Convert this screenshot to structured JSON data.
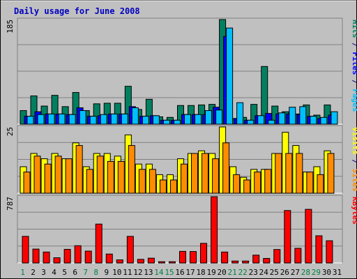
{
  "chart_data": [
    {
      "type": "bar",
      "title": "Daily usage for June 2008",
      "ymax_label": "185",
      "ylim": [
        0,
        185
      ],
      "categories": [
        "1",
        "2",
        "3",
        "4",
        "5",
        "6",
        "7",
        "8",
        "9",
        "10",
        "11",
        "12",
        "13",
        "14",
        "15",
        "16",
        "17",
        "18",
        "19",
        "20",
        "21",
        "22",
        "23",
        "24",
        "25",
        "26",
        "27",
        "28",
        "29",
        "30",
        "31"
      ],
      "weekend_days": [
        "1",
        "7",
        "8",
        "14",
        "15",
        "21",
        "22",
        "28",
        "29"
      ],
      "series": [
        {
          "name": "Hits",
          "color": "#008060",
          "values": [
            24,
            50,
            32,
            51,
            31,
            56,
            24,
            36,
            37,
            37,
            67,
            26,
            44,
            13,
            12,
            33,
            33,
            34,
            35,
            185,
            10,
            12,
            35,
            102,
            32,
            22,
            18,
            34,
            16,
            34,
            0
          ]
        },
        {
          "name": "Files",
          "color": "#0000ff",
          "values": [
            14,
            22,
            18,
            18,
            17,
            29,
            14,
            15,
            18,
            18,
            31,
            14,
            15,
            7,
            7,
            17,
            17,
            17,
            30,
            155,
            10,
            7,
            15,
            19,
            18,
            18,
            17,
            14,
            10,
            16,
            0
          ]
        },
        {
          "name": "Pages",
          "color": "#00bfff",
          "values": [
            14,
            17,
            18,
            18,
            17,
            24,
            14,
            17,
            18,
            18,
            29,
            14,
            15,
            7,
            7,
            17,
            17,
            24,
            25,
            170,
            38,
            7,
            15,
            7,
            20,
            30,
            31,
            14,
            12,
            22,
            0
          ]
        }
      ],
      "label_parts": [
        {
          "text": "Pages",
          "color": "#00bfff"
        },
        {
          "text": " / ",
          "color": "#000080"
        },
        {
          "text": "Files",
          "color": "#0000ff"
        },
        {
          "text": " / ",
          "color": "#000080"
        },
        {
          "text": "Hits",
          "color": "#008060"
        }
      ]
    },
    {
      "type": "bar",
      "ymax_label": "25",
      "ylim": [
        0,
        25
      ],
      "series": [
        {
          "name": "Visits",
          "color": "#ffff00",
          "values": [
            10,
            15,
            13,
            15,
            13,
            19,
            10,
            15,
            15,
            14,
            22,
            11,
            11,
            7,
            7,
            13,
            15,
            16,
            15,
            25,
            10,
            6,
            9,
            9,
            15,
            23,
            18,
            8,
            10,
            16,
            0
          ]
        },
        {
          "name": "Sites",
          "color": "#ff8c00",
          "values": [
            8,
            14,
            11,
            14,
            13,
            18,
            9,
            14,
            12,
            12,
            18,
            9,
            9,
            5,
            5,
            11,
            15,
            15,
            13,
            19,
            7,
            5,
            8,
            9,
            15,
            15,
            15,
            8,
            7,
            15,
            0
          ]
        }
      ],
      "label_parts": [
        {
          "text": "Sites",
          "color": "#ff8c00"
        },
        {
          "text": " / ",
          "color": "#000080"
        },
        {
          "text": "Visits",
          "color": "#ffff00"
        }
      ]
    },
    {
      "type": "bar",
      "ymax_label": "787",
      "ylim": [
        0,
        787
      ],
      "series": [
        {
          "name": "KBytes",
          "color": "#ff0000",
          "values": [
            316,
            165,
            130,
            62,
            162,
            205,
            141,
            462,
            106,
            37,
            316,
            43,
            57,
            15,
            15,
            138,
            136,
            233,
            787,
            130,
            23,
            23,
            93,
            54,
            160,
            623,
            174,
            637,
            323,
            264,
            0
          ]
        }
      ],
      "label_parts": [
        {
          "text": "KBytes",
          "color": "#ff0000"
        }
      ]
    }
  ]
}
